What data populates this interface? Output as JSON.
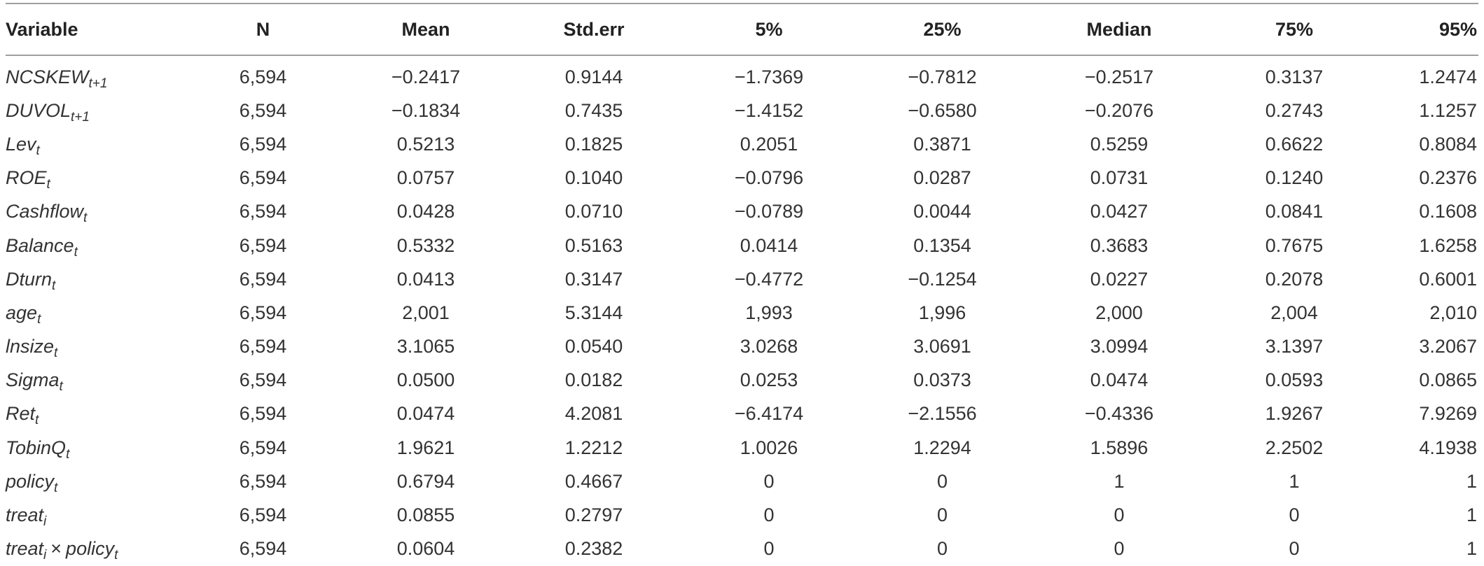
{
  "table": {
    "headers": [
      "Variable",
      "N",
      "Mean",
      "Std.err",
      "5%",
      "25%",
      "Median",
      "75%",
      "95%"
    ],
    "rows": [
      {
        "var": {
          "base": "NCSKEW",
          "sub": "t+1"
        },
        "values": [
          "6,594",
          "−0.2417",
          "0.9144",
          "−1.7369",
          "−0.7812",
          "−0.2517",
          "0.3137",
          "1.2474"
        ]
      },
      {
        "var": {
          "base": "DUVOL",
          "sub": "t+1"
        },
        "values": [
          "6,594",
          "−0.1834",
          "0.7435",
          "−1.4152",
          "−0.6580",
          "−0.2076",
          "0.2743",
          "1.1257"
        ]
      },
      {
        "var": {
          "base": "Lev",
          "sub": "t"
        },
        "values": [
          "6,594",
          "0.5213",
          "0.1825",
          "0.2051",
          "0.3871",
          "0.5259",
          "0.6622",
          "0.8084"
        ]
      },
      {
        "var": {
          "base": "ROE",
          "sub": "t"
        },
        "values": [
          "6,594",
          "0.0757",
          "0.1040",
          "−0.0796",
          "0.0287",
          "0.0731",
          "0.1240",
          "0.2376"
        ]
      },
      {
        "var": {
          "base": "Cashflow",
          "sub": "t"
        },
        "values": [
          "6,594",
          "0.0428",
          "0.0710",
          "−0.0789",
          "0.0044",
          "0.0427",
          "0.0841",
          "0.1608"
        ]
      },
      {
        "var": {
          "base": "Balance",
          "sub": "t"
        },
        "values": [
          "6,594",
          "0.5332",
          "0.5163",
          "0.0414",
          "0.1354",
          "0.3683",
          "0.7675",
          "1.6258"
        ]
      },
      {
        "var": {
          "base": "Dturn",
          "sub": "t"
        },
        "values": [
          "6,594",
          "0.0413",
          "0.3147",
          "−0.4772",
          "−0.1254",
          "0.0227",
          "0.2078",
          "0.6001"
        ]
      },
      {
        "var": {
          "base": "age",
          "sub": "t"
        },
        "values": [
          "6,594",
          "2,001",
          "5.3144",
          "1,993",
          "1,996",
          "2,000",
          "2,004",
          "2,010"
        ]
      },
      {
        "var": {
          "base": "lnsize",
          "sub": "t"
        },
        "values": [
          "6,594",
          "3.1065",
          "0.0540",
          "3.0268",
          "3.0691",
          "3.0994",
          "3.1397",
          "3.2067"
        ]
      },
      {
        "var": {
          "base": "Sigma",
          "sub": "t"
        },
        "values": [
          "6,594",
          "0.0500",
          "0.0182",
          "0.0253",
          "0.0373",
          "0.0474",
          "0.0593",
          "0.0865"
        ]
      },
      {
        "var": {
          "base": "Ret",
          "sub": "t"
        },
        "values": [
          "6,594",
          "0.0474",
          "4.2081",
          "−6.4174",
          "−2.1556",
          "−0.4336",
          "1.9267",
          "7.9269"
        ]
      },
      {
        "var": {
          "base": "TobinQ",
          "sub": "t"
        },
        "values": [
          "6,594",
          "1.9621",
          "1.2212",
          "1.0026",
          "1.2294",
          "1.5896",
          "2.2502",
          "4.1938"
        ]
      },
      {
        "var": {
          "base": "policy",
          "sub": "t"
        },
        "values": [
          "6,594",
          "0.6794",
          "0.4667",
          "0",
          "0",
          "1",
          "1",
          "1"
        ]
      },
      {
        "var": {
          "base": "treat",
          "sub": "i"
        },
        "values": [
          "6,594",
          "0.0855",
          "0.2797",
          "0",
          "0",
          "0",
          "0",
          "1"
        ]
      },
      {
        "var": {
          "base": "treat",
          "sub": "i",
          "op": "×",
          "base2": "policy",
          "sub2": "t"
        },
        "values": [
          "6,594",
          "0.0604",
          "0.2382",
          "0",
          "0",
          "0",
          "0",
          "1"
        ]
      }
    ]
  }
}
